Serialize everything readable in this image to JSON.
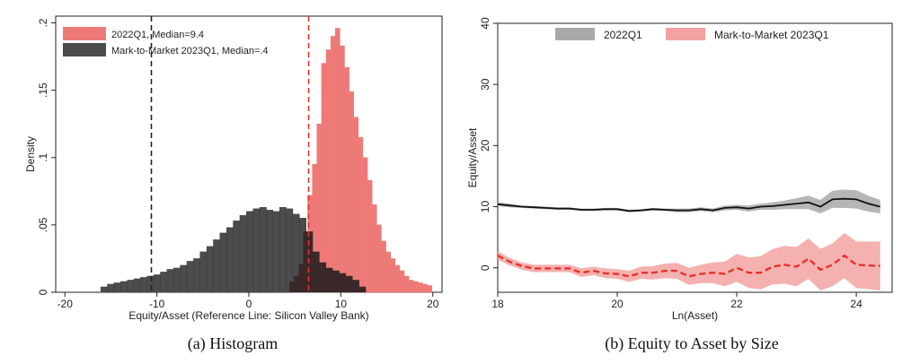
{
  "captions": {
    "left": "(a) Histogram",
    "right": "(b) Equity to Asset by Size"
  },
  "colors": {
    "red_fill": "#ee7a78",
    "red_line": "#e8312d",
    "red_band": "#f2a3a1",
    "dark_fill": "#4c4c4c",
    "overlap_fill": "#3a2727",
    "gray_band": "#a9a9a9",
    "black_line": "#111111"
  },
  "chart_data": [
    {
      "type": "bar",
      "subtype": "histogram",
      "xlabel": "Equity/Asset (Reference Line: Silicon Valley Bank)",
      "ylabel": "Density",
      "xlim": [
        -21,
        21
      ],
      "ylim": [
        0,
        0.205
      ],
      "x_ticks": [
        -20,
        -10,
        0,
        10,
        20
      ],
      "x_tick_labels": [
        "-20",
        "-10",
        "0",
        "10",
        "20"
      ],
      "y_ticks": [
        0,
        0.05,
        0.1,
        0.15,
        0.2
      ],
      "y_tick_labels": [
        "0",
        ".05",
        ".1",
        ".15",
        ".2"
      ],
      "legend_position": "top-left",
      "reference_lines": [
        {
          "x": -10.6,
          "style": "dashed",
          "series": "Mark-to-Market 2023Q1"
        },
        {
          "x": 6.5,
          "style": "dashed",
          "series": "2022Q1"
        }
      ],
      "series": [
        {
          "name": "2022Q1",
          "legend": "2022Q1, Median=9.4",
          "median": 9.4,
          "bin_start": 4.4,
          "bin_width": 0.5,
          "values": [
            0.008,
            0.012,
            0.021,
            0.045,
            0.072,
            0.095,
            0.125,
            0.17,
            0.18,
            0.19,
            0.196,
            0.183,
            0.167,
            0.149,
            0.13,
            0.115,
            0.1,
            0.083,
            0.065,
            0.05,
            0.038,
            0.03,
            0.025,
            0.02,
            0.016,
            0.012,
            0.009,
            0.008,
            0.007,
            0.006,
            0.005
          ]
        },
        {
          "name": "Mark-to-Market 2023Q1",
          "legend": "Mark-to-Market 2023Q1, Median=.4",
          "median": 0.4,
          "bin_start": -16.1,
          "bin_width": 0.72,
          "values": [
            0.004,
            0.006,
            0.007,
            0.008,
            0.009,
            0.01,
            0.011,
            0.012,
            0.013,
            0.015,
            0.017,
            0.018,
            0.02,
            0.023,
            0.025,
            0.03,
            0.034,
            0.039,
            0.044,
            0.048,
            0.053,
            0.057,
            0.06,
            0.062,
            0.063,
            0.061,
            0.06,
            0.063,
            0.062,
            0.058,
            0.055,
            0.045,
            0.03,
            0.022,
            0.018,
            0.016,
            0.014,
            0.012,
            0.009,
            0.004
          ]
        }
      ]
    },
    {
      "type": "line",
      "xlabel": "Ln(Asset)",
      "ylabel": "Equity/Asset",
      "xlim": [
        18,
        24.6
      ],
      "ylim": [
        -4,
        40
      ],
      "x_ticks": [
        18,
        20,
        22,
        24
      ],
      "x_tick_labels": [
        "18",
        "20",
        "22",
        "24"
      ],
      "y_ticks": [
        0,
        10,
        20,
        30,
        40
      ],
      "y_tick_labels": [
        "0",
        "10",
        "20",
        "30",
        "40"
      ],
      "legend_position": "top",
      "series": [
        {
          "name": "2022Q1",
          "style": "solid line with confidence band",
          "x": [
            18.0,
            18.2,
            18.4,
            18.6,
            18.8,
            19.0,
            19.2,
            19.4,
            19.6,
            19.8,
            20.0,
            20.2,
            20.4,
            20.6,
            20.8,
            21.0,
            21.2,
            21.4,
            21.6,
            21.8,
            22.0,
            22.2,
            22.4,
            22.6,
            22.8,
            23.0,
            23.2,
            23.4,
            23.6,
            23.8,
            24.0,
            24.2,
            24.4
          ],
          "y": [
            10.4,
            10.2,
            10.0,
            9.9,
            9.8,
            9.7,
            9.7,
            9.5,
            9.5,
            9.6,
            9.6,
            9.3,
            9.4,
            9.6,
            9.5,
            9.4,
            9.4,
            9.6,
            9.4,
            9.8,
            9.9,
            9.7,
            10.0,
            10.1,
            10.3,
            10.5,
            10.7,
            10.0,
            11.2,
            11.3,
            11.2,
            10.5,
            10.0
          ],
          "band_lower": [
            10.1,
            9.9,
            9.8,
            9.7,
            9.6,
            9.5,
            9.5,
            9.3,
            9.3,
            9.4,
            9.4,
            9.1,
            9.2,
            9.4,
            9.3,
            9.1,
            9.1,
            9.3,
            9.1,
            9.4,
            9.5,
            9.2,
            9.5,
            9.5,
            9.6,
            9.6,
            9.6,
            8.9,
            9.8,
            9.8,
            9.7,
            9.2,
            8.9
          ],
          "band_upper": [
            10.7,
            10.5,
            10.2,
            10.1,
            10.0,
            9.9,
            9.9,
            9.7,
            9.7,
            9.8,
            9.8,
            9.5,
            9.6,
            9.8,
            9.7,
            9.7,
            9.7,
            9.9,
            9.7,
            10.2,
            10.3,
            10.2,
            10.5,
            10.7,
            11.0,
            11.4,
            11.8,
            11.1,
            12.6,
            12.8,
            12.7,
            11.8,
            11.1
          ]
        },
        {
          "name": "Mark-to-Market 2023Q1",
          "style": "dashed line with confidence band",
          "x": [
            18.0,
            18.2,
            18.4,
            18.6,
            18.8,
            19.0,
            19.2,
            19.4,
            19.6,
            19.8,
            20.0,
            20.2,
            20.4,
            20.6,
            20.8,
            21.0,
            21.2,
            21.4,
            21.6,
            21.8,
            22.0,
            22.2,
            22.4,
            22.6,
            22.8,
            23.0,
            23.2,
            23.4,
            23.6,
            23.8,
            24.0,
            24.2,
            24.4
          ],
          "y": [
            2.0,
            1.0,
            0.3,
            -0.1,
            -0.1,
            -0.1,
            -0.1,
            -0.8,
            -0.5,
            -0.9,
            -1.0,
            -1.4,
            -0.8,
            -0.8,
            -0.5,
            -0.5,
            -1.4,
            -1.0,
            -0.8,
            -1.0,
            0.0,
            -0.8,
            -0.8,
            0.2,
            0.5,
            0.2,
            1.5,
            -0.3,
            0.5,
            2.0,
            0.5,
            0.4,
            0.3
          ],
          "band_lower": [
            1.3,
            0.4,
            -0.3,
            -0.7,
            -0.7,
            -0.7,
            -0.7,
            -1.5,
            -1.2,
            -1.7,
            -1.8,
            -2.3,
            -1.8,
            -1.9,
            -1.7,
            -1.8,
            -2.8,
            -2.5,
            -2.5,
            -3.0,
            -2.3,
            -3.3,
            -3.5,
            -2.7,
            -2.6,
            -3.0,
            -1.8,
            -3.7,
            -3.0,
            -1.7,
            -3.3,
            -3.5,
            -3.7
          ],
          "band_upper": [
            2.7,
            1.6,
            0.9,
            0.5,
            0.5,
            0.5,
            0.5,
            -0.1,
            0.2,
            -0.1,
            -0.2,
            -0.5,
            0.2,
            0.3,
            0.7,
            0.8,
            0.0,
            0.5,
            0.9,
            1.0,
            2.3,
            1.7,
            1.9,
            3.1,
            3.6,
            3.4,
            4.8,
            3.1,
            4.0,
            5.7,
            4.3,
            4.3,
            4.3
          ]
        }
      ]
    }
  ]
}
